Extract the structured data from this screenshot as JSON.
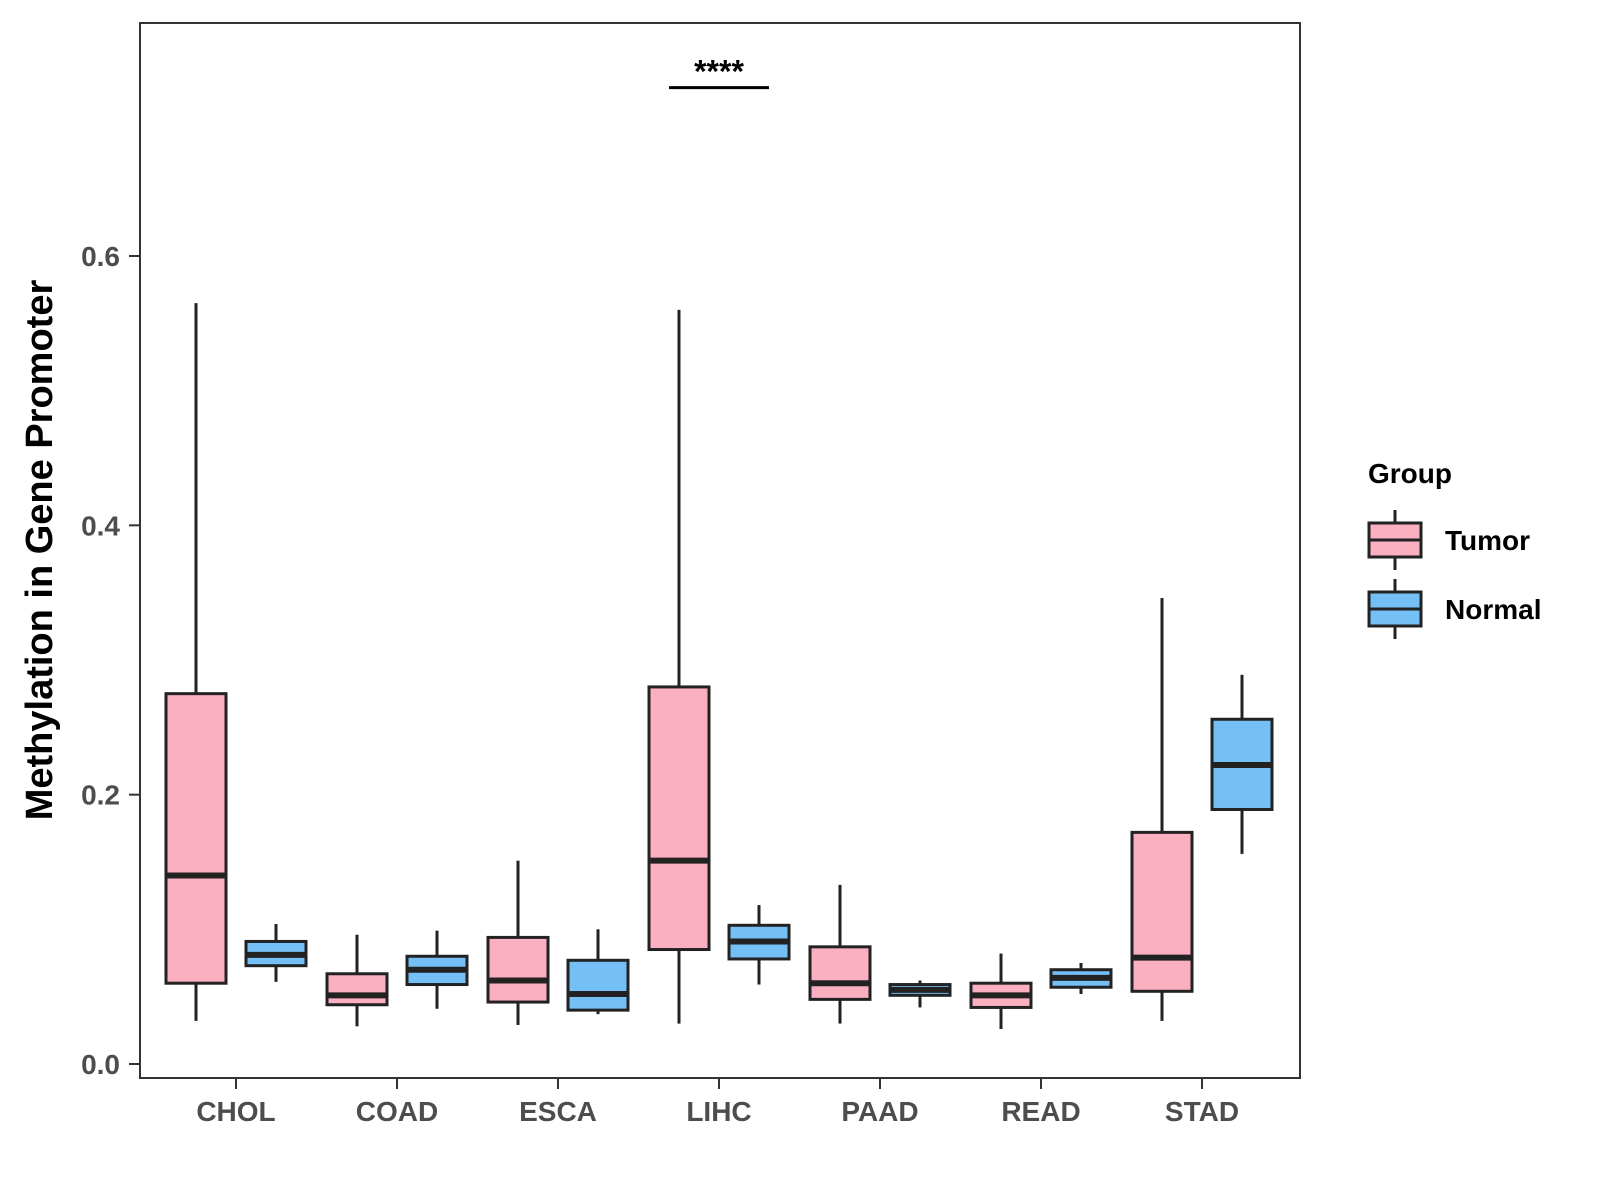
{
  "chart_data": {
    "type": "boxplot",
    "title": "",
    "xlabel": "",
    "ylabel": "Methylation in Gene Promoter",
    "ylim": [
      -0.01,
      0.78
    ],
    "yticks": [
      0.0,
      0.2,
      0.4,
      0.6
    ],
    "ytick_labels": [
      "0.0",
      "0.2",
      "0.4",
      "0.6"
    ],
    "categories": [
      "CHOL",
      "COAD",
      "ESCA",
      "LIHC",
      "PAAD",
      "READ",
      "STAD"
    ],
    "legend": {
      "title": "Group",
      "position": "right",
      "entries": [
        "Tumor",
        "Normal"
      ]
    },
    "series": [
      {
        "name": "Tumor",
        "color": "#FBB0C1",
        "boxes": [
          {
            "category": "CHOL",
            "min": 0.032,
            "q1": 0.06,
            "median": 0.14,
            "q3": 0.275,
            "max": 0.565
          },
          {
            "category": "COAD",
            "min": 0.028,
            "q1": 0.044,
            "median": 0.051,
            "q3": 0.067,
            "max": 0.096
          },
          {
            "category": "ESCA",
            "min": 0.029,
            "q1": 0.046,
            "median": 0.062,
            "q3": 0.094,
            "max": 0.151
          },
          {
            "category": "LIHC",
            "min": 0.03,
            "q1": 0.085,
            "median": 0.151,
            "q3": 0.28,
            "max": 0.56
          },
          {
            "category": "PAAD",
            "min": 0.03,
            "q1": 0.048,
            "median": 0.06,
            "q3": 0.087,
            "max": 0.133
          },
          {
            "category": "READ",
            "min": 0.026,
            "q1": 0.042,
            "median": 0.051,
            "q3": 0.06,
            "max": 0.082
          },
          {
            "category": "STAD",
            "min": 0.032,
            "q1": 0.054,
            "median": 0.079,
            "q3": 0.172,
            "max": 0.346
          }
        ]
      },
      {
        "name": "Normal",
        "color": "#74BFF5",
        "boxes": [
          {
            "category": "CHOL",
            "min": 0.061,
            "q1": 0.073,
            "median": 0.081,
            "q3": 0.091,
            "max": 0.104
          },
          {
            "category": "COAD",
            "min": 0.041,
            "q1": 0.059,
            "median": 0.07,
            "q3": 0.08,
            "max": 0.099
          },
          {
            "category": "ESCA",
            "min": 0.037,
            "q1": 0.04,
            "median": 0.052,
            "q3": 0.077,
            "max": 0.1
          },
          {
            "category": "LIHC",
            "min": 0.059,
            "q1": 0.078,
            "median": 0.091,
            "q3": 0.103,
            "max": 0.118
          },
          {
            "category": "PAAD",
            "min": 0.042,
            "q1": 0.051,
            "median": 0.055,
            "q3": 0.059,
            "max": 0.062
          },
          {
            "category": "READ",
            "min": 0.052,
            "q1": 0.057,
            "median": 0.064,
            "q3": 0.07,
            "max": 0.075
          },
          {
            "category": "STAD",
            "min": 0.156,
            "q1": 0.189,
            "median": 0.222,
            "q3": 0.256,
            "max": 0.289
          }
        ]
      }
    ],
    "annotations": [
      {
        "category": "LIHC",
        "text": "****",
        "y": 0.725
      }
    ]
  }
}
